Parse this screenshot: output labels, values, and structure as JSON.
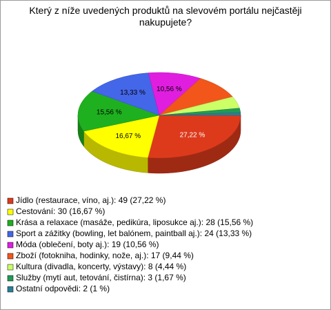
{
  "chart_data": {
    "type": "pie3d",
    "title": "Který z níže uvedených produktů na slevovém portálu nejčastěji nakupujete?",
    "categories": [
      "Jídlo (restaurace, víno, aj.): 49 (27,22 %)",
      "Cestování: 30 (16,67 %)",
      "Krása a relaxace (masáže, pedikúra, liposukce aj.): 28 (15,56 %)",
      "Sport a zážitky (bowling, let balónem, paintball aj.): 24 (13,33 %)",
      "Móda (oblečení, boty aj.): 19 (10,56 %)",
      "Zboží (fotokniha, hodinky, nože, aj.): 17 (9,44 %)",
      "Kultura (divadla, koncerty, výstavy): 8 (4,44 %)",
      "Služby (mytí aut, tetování, čistírna): 3 (1,67 %)",
      "Ostatní odpovědi: 2 (1 %)"
    ],
    "values": [
      27.22,
      16.67,
      15.56,
      13.33,
      10.56,
      9.44,
      4.44,
      1.67,
      1
    ],
    "value_labels": [
      "27,22 %",
      "16,67 %",
      "15,56 %",
      "13,33 %",
      "10,56 %",
      null,
      null,
      null,
      null
    ],
    "colors": [
      "#dd3a1c",
      "#ffff00",
      "#1fb01f",
      "#4466e8",
      "#e01ee0",
      "#f2561a",
      "#ccff66",
      "#229a55",
      "#2a7f9a"
    ],
    "legend": "bottom-left"
  }
}
